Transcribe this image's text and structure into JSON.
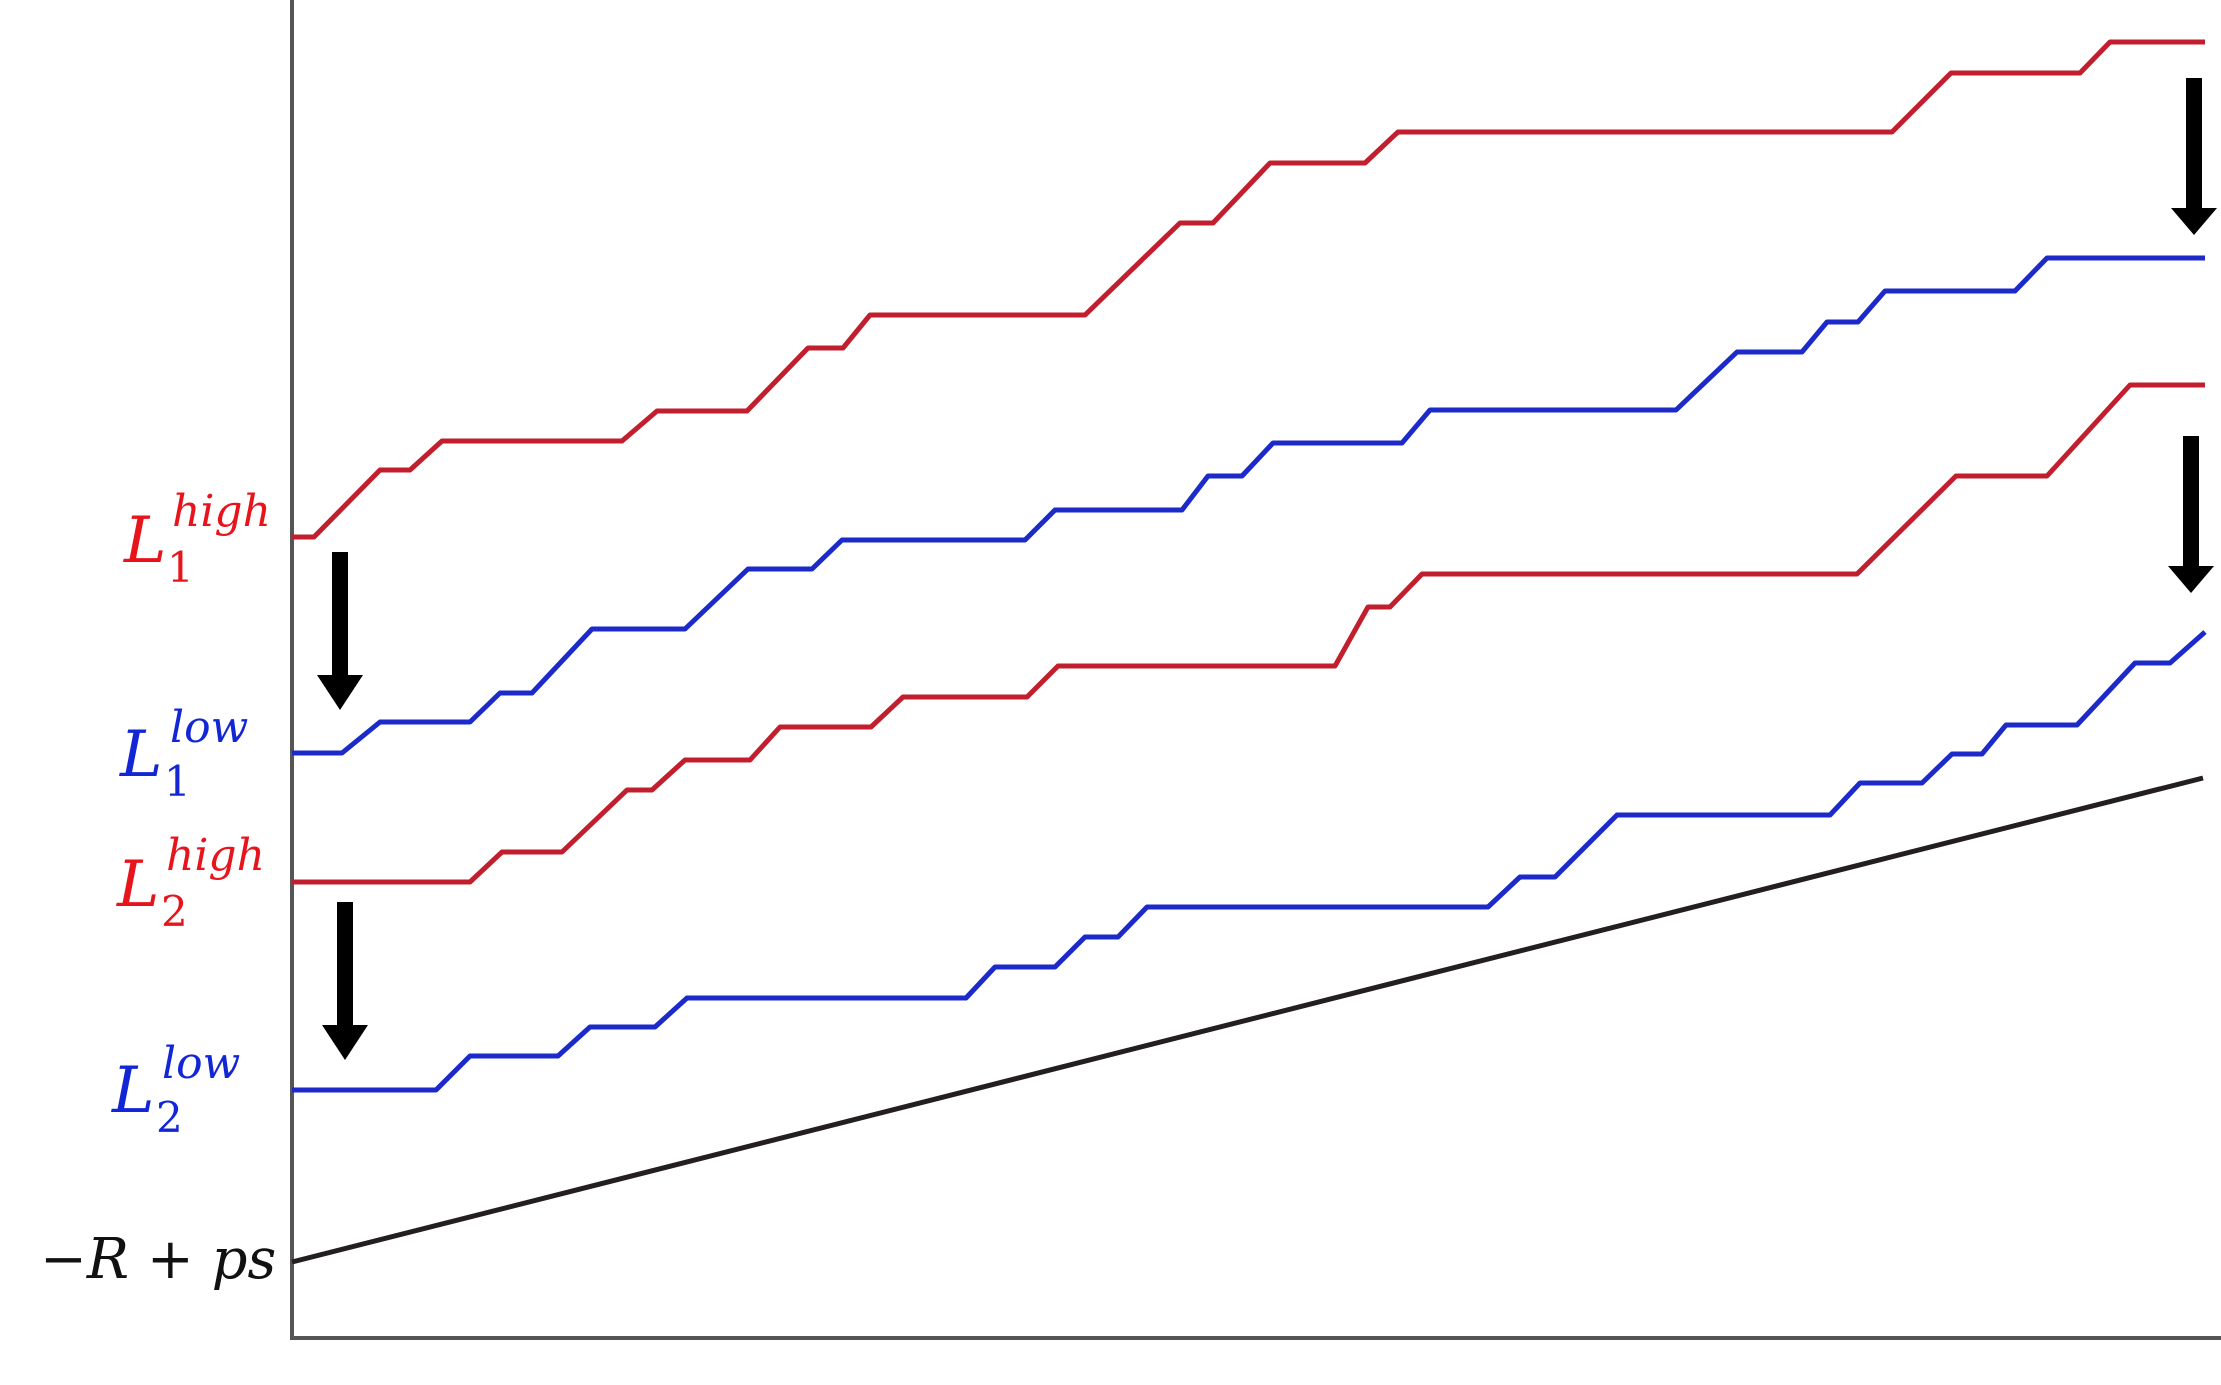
{
  "labels": {
    "l1_high": {
      "base": "L",
      "sub": "1",
      "sup": "high",
      "color": "#e8141c"
    },
    "l1_low": {
      "base": "L",
      "sub": "1",
      "sup": "low",
      "color": "#1226d6"
    },
    "l2_high": {
      "base": "L",
      "sub": "2",
      "sup": "high",
      "color": "#e8141c"
    },
    "l2_low": {
      "base": "L",
      "sub": "2",
      "sup": "low",
      "color": "#1226d6"
    },
    "baseline": {
      "text": "−R + ps",
      "color": "#111111"
    }
  },
  "colors": {
    "high_path": "#c21f2e",
    "low_path": "#1b2ac8",
    "baseline_line": "#231f20",
    "axes": "#555555",
    "arrow": "#000000"
  },
  "icons": [
    "down-arrow-icon"
  ]
}
